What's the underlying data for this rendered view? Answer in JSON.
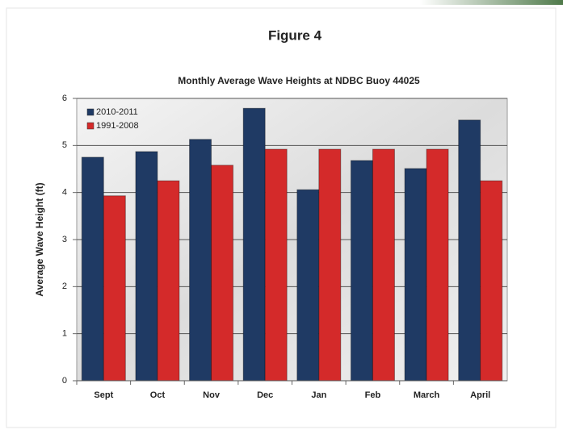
{
  "figure_label": "Figure 4",
  "chart_data": {
    "type": "bar",
    "title": "Monthly Average Wave Heights at NDBC Buoy 44025",
    "y_label": "Average Wave Height (ft)",
    "categories": [
      "Sept",
      "Oct",
      "Nov",
      "Dec",
      "Jan",
      "Feb",
      "March",
      "April"
    ],
    "series": [
      {
        "name": "2010-2011",
        "color": "#1f3a64",
        "values": [
          4.75,
          4.87,
          5.13,
          5.79,
          4.06,
          4.68,
          4.51,
          5.54
        ]
      },
      {
        "name": "1991-2008",
        "color": "#d42a2a",
        "values": [
          3.93,
          4.25,
          4.58,
          4.92,
          4.92,
          4.92,
          4.92,
          4.25
        ]
      }
    ],
    "ylim": [
      0,
      6
    ],
    "yticks": [
      0,
      1,
      2,
      3,
      4,
      5,
      6
    ],
    "grid": true,
    "legend": "top-left"
  }
}
